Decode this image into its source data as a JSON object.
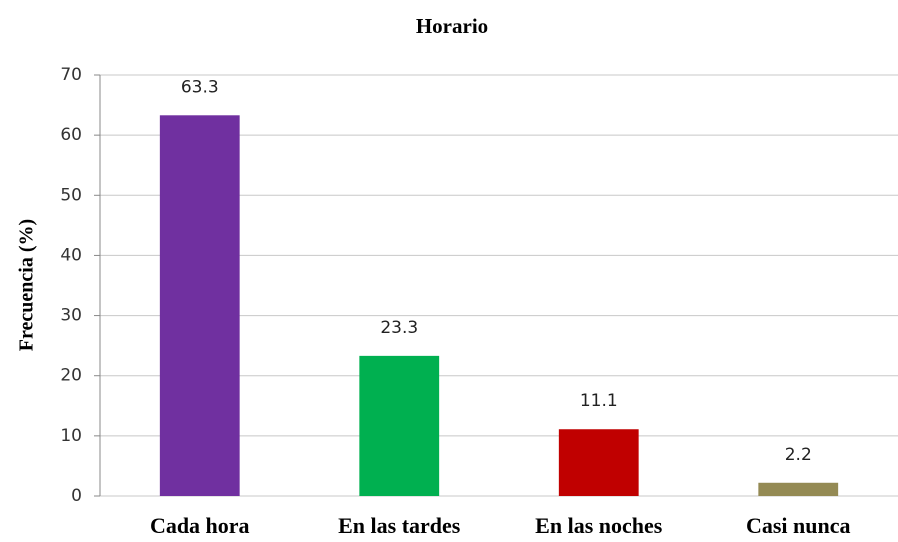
{
  "chart_data": {
    "type": "bar",
    "title": "Horario",
    "ylabel": "Frecuencia (%)",
    "categories": [
      "Cada hora",
      "En las tardes",
      "En las noches",
      "Casi nunca"
    ],
    "values": [
      63.3,
      23.3,
      11.1,
      2.2
    ],
    "colors": [
      "#7030a0",
      "#00b050",
      "#c00000",
      "#948a54"
    ],
    "ylim": [
      0,
      70
    ],
    "yticks": [
      0,
      10,
      20,
      30,
      40,
      50,
      60,
      70
    ],
    "grid": true,
    "data_labels": true
  }
}
